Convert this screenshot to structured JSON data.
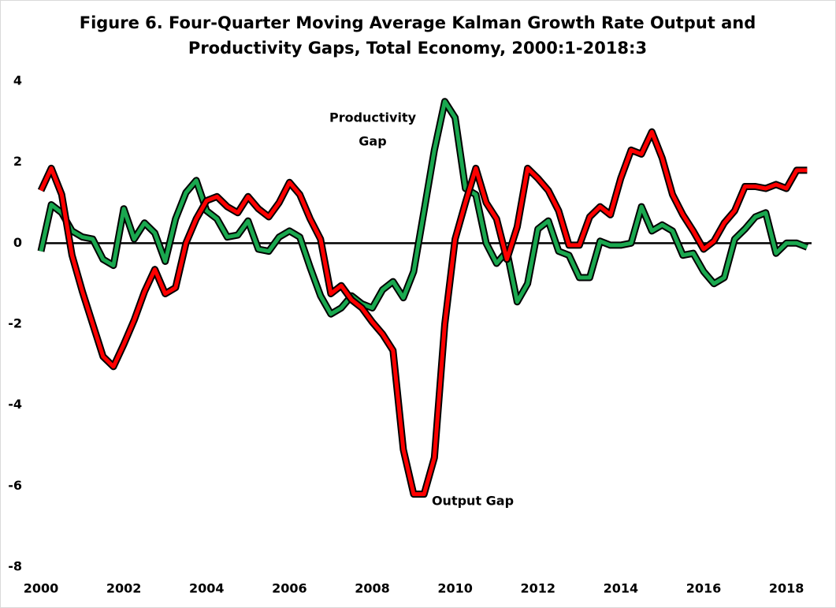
{
  "chart_data": {
    "type": "line",
    "title": [
      "Figure 6. Four-Quarter Moving Average Kalman Growth Rate Output and",
      "Productivity Gaps, Total Economy, 2000:1-2018:3"
    ],
    "categories": [
      "2000",
      null,
      null,
      null,
      null,
      null,
      null,
      null,
      "2002",
      null,
      null,
      null,
      null,
      null,
      null,
      null,
      "2004",
      null,
      null,
      null,
      null,
      null,
      null,
      null,
      "2006",
      null,
      null,
      null,
      null,
      null,
      null,
      null,
      "2008",
      null,
      null,
      null,
      null,
      null,
      null,
      null,
      "2010",
      null,
      null,
      null,
      null,
      null,
      null,
      null,
      "2012",
      null,
      null,
      null,
      null,
      null,
      null,
      null,
      "2014",
      null,
      null,
      null,
      null,
      null,
      null,
      null,
      "2016",
      null,
      null,
      null,
      null,
      null,
      null,
      null,
      "2018",
      null,
      null
    ],
    "series": [
      {
        "name": "Output Gap",
        "color": "#ff0000",
        "values": [
          1.3,
          1.85,
          1.2,
          -0.3,
          -1.2,
          -2.0,
          -2.8,
          -3.05,
          -2.5,
          -1.9,
          -1.2,
          -0.65,
          -1.25,
          -1.1,
          0.0,
          0.6,
          1.05,
          1.15,
          0.9,
          0.75,
          1.15,
          0.85,
          0.65,
          1.0,
          1.5,
          1.2,
          0.6,
          0.1,
          -1.25,
          -1.05,
          -1.4,
          -1.6,
          -1.95,
          -2.25,
          -2.65,
          -5.1,
          -6.2,
          -6.2,
          -5.3,
          -2.0,
          0.1,
          1.0,
          1.85,
          1.0,
          0.6,
          -0.4,
          0.4,
          1.85,
          1.6,
          1.3,
          0.8,
          -0.05,
          -0.05,
          0.65,
          0.9,
          0.7,
          1.6,
          2.3,
          2.2,
          2.75,
          2.1,
          1.2,
          0.7,
          0.3,
          -0.15,
          0.05,
          0.5,
          0.8,
          1.4,
          1.4,
          1.35,
          1.45,
          1.35,
          1.8,
          1.8
        ]
      },
      {
        "name": "Productivity Gap",
        "color": "#1aa84f",
        "values": [
          -0.2,
          0.95,
          0.75,
          0.3,
          0.15,
          0.1,
          -0.4,
          -0.55,
          0.85,
          0.1,
          0.5,
          0.25,
          -0.45,
          0.6,
          1.25,
          1.55,
          0.8,
          0.6,
          0.15,
          0.2,
          0.55,
          -0.15,
          -0.2,
          0.15,
          0.3,
          0.15,
          -0.6,
          -1.3,
          -1.75,
          -1.6,
          -1.3,
          -1.5,
          -1.6,
          -1.15,
          -0.95,
          -1.35,
          -0.7,
          0.8,
          2.3,
          3.5,
          3.1,
          1.35,
          1.2,
          0.0,
          -0.5,
          -0.2,
          -1.45,
          -1.0,
          0.35,
          0.55,
          -0.2,
          -0.3,
          -0.85,
          -0.85,
          0.05,
          -0.05,
          -0.05,
          0.0,
          0.9,
          0.3,
          0.45,
          0.3,
          -0.3,
          -0.25,
          -0.7,
          -1.0,
          -0.85,
          0.1,
          0.35,
          0.65,
          0.75,
          -0.25,
          0.0,
          0.0,
          -0.1
        ]
      }
    ],
    "annotations": [
      {
        "text": [
          "Productivity",
          "Gap"
        ]
      },
      {
        "text": [
          "Output Gap"
        ]
      }
    ],
    "ylim": [
      -8,
      4
    ],
    "yticks": [
      4,
      2,
      0,
      -2,
      -4,
      -6,
      -8
    ],
    "grid": false
  }
}
